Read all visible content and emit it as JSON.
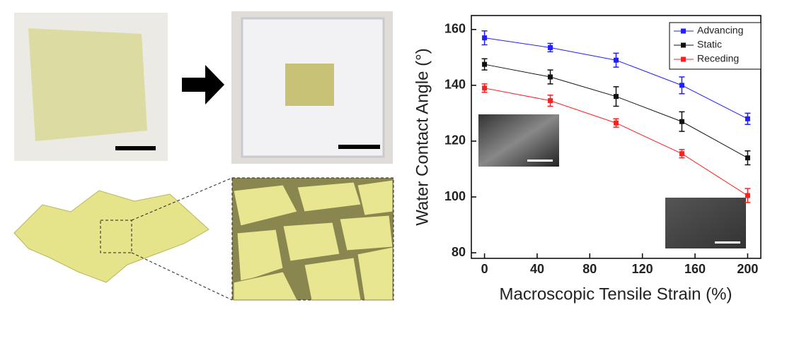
{
  "chart_data": {
    "type": "line",
    "x_label": "Macroscopic Tensile Strain (%)",
    "y_label": "Water Contact Angle (°)",
    "x": [
      0,
      50,
      100,
      150,
      200
    ],
    "series": [
      {
        "name": "Advancing",
        "color": "#1f1fff",
        "values": [
          157,
          153.5,
          149,
          140,
          128
        ],
        "errors": [
          2.5,
          1.5,
          2.5,
          3,
          2
        ]
      },
      {
        "name": "Static",
        "color": "#111111",
        "values": [
          147.5,
          143,
          136,
          127,
          114
        ],
        "errors": [
          2,
          2.5,
          3.5,
          3.5,
          2.5
        ]
      },
      {
        "name": "Receding",
        "color": "#ff1f1f",
        "values": [
          139,
          134.5,
          126.5,
          115.5,
          100.5
        ],
        "errors": [
          1.5,
          2,
          1.5,
          1.5,
          2.5
        ]
      }
    ],
    "xlim": [
      -10,
      210
    ],
    "xticks": [
      0,
      40,
      80,
      120,
      160,
      200
    ],
    "ylim": [
      78,
      165
    ],
    "yticks": [
      80,
      100,
      120,
      140,
      160
    ],
    "legend": "upper right"
  }
}
